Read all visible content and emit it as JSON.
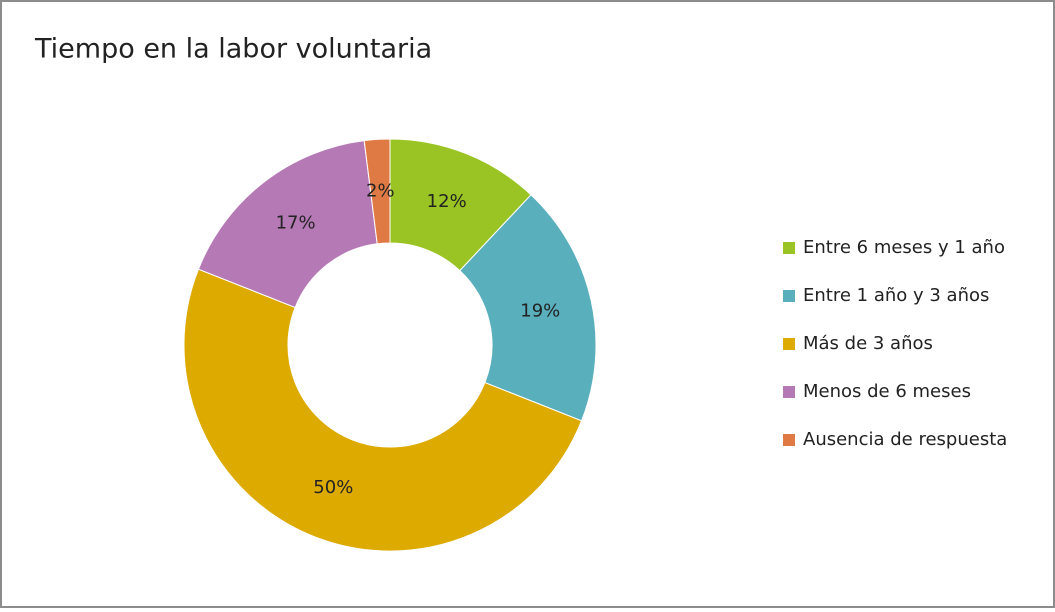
{
  "chart_data": {
    "type": "donut",
    "title": "Tiempo en la labor voluntaria",
    "categories": [
      "Entre 6 meses y 1 año",
      "Entre 1 año y 3 años",
      "Más de 3 años",
      "Menos de 6 meses",
      "Ausencia de respuesta"
    ],
    "values": [
      12,
      19,
      50,
      17,
      2
    ],
    "value_labels": [
      "12%",
      "19%",
      "50%",
      "17%",
      "2%"
    ],
    "colors": [
      "#99c424",
      "#5aafbd",
      "#ddaa00",
      "#b57ab5",
      "#e07a45"
    ],
    "legend": "right"
  }
}
